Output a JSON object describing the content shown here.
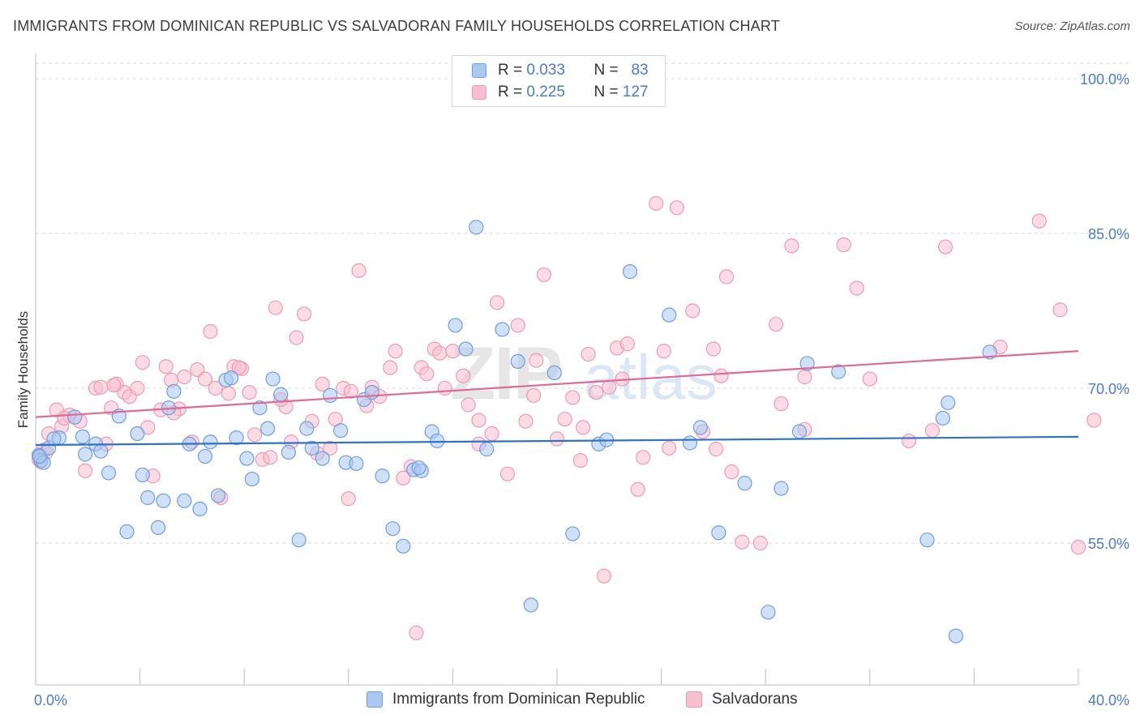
{
  "title": "IMMIGRANTS FROM DOMINICAN REPUBLIC VS SALVADORAN FAMILY HOUSEHOLDS CORRELATION CHART",
  "source": "Source: ZipAtlas.com",
  "watermark": "ZIPatlas",
  "colors": {
    "blue_fill": "#aac8f0",
    "blue_stroke": "#6f9ee0",
    "blue_line": "#2f73c9",
    "pink_fill": "#f7bfd0",
    "pink_stroke": "#ee9ab5",
    "pink_line": "#e06a96",
    "tick_text": "#4a7cc9",
    "grid": "#d9d9d9"
  },
  "stats": {
    "row1": {
      "r_label": "R =",
      "r_value": "0.033",
      "n_label": "N =",
      "n_value": "83"
    },
    "row2": {
      "r_label": "R =",
      "r_value": "0.225",
      "n_label": "N =",
      "n_value": "127"
    }
  },
  "chart_data": {
    "type": "scatter",
    "title": "IMMIGRANTS FROM DOMINICAN REPUBLIC VS SALVADORAN FAMILY HOUSEHOLDS CORRELATION CHART",
    "xlabel": "",
    "ylabel": "Family Households",
    "xlim": [
      0,
      40
    ],
    "ylim": [
      40,
      102
    ],
    "x_tick_labels": [
      "0.0%",
      "40.0%"
    ],
    "y_ticks": [
      55,
      70,
      85,
      100
    ],
    "y_tick_labels": [
      "55.0%",
      "70.0%",
      "85.0%",
      "100.0%"
    ],
    "grid": true,
    "legend_position": "bottom-center",
    "series": [
      {
        "name": "Immigrants from Dominican Republic",
        "color": "blue",
        "trend": {
          "x": [
            0,
            40
          ],
          "y": [
            64.5,
            65.3
          ]
        },
        "points": [
          [
            0.1,
            63.5
          ],
          [
            0.2,
            63
          ],
          [
            0.3,
            62.8
          ],
          [
            0.5,
            64.2
          ],
          [
            0.9,
            65.2
          ],
          [
            1.5,
            67.2
          ],
          [
            1.9,
            63.6
          ],
          [
            1.8,
            65.3
          ],
          [
            2.3,
            64.6
          ],
          [
            2.5,
            63.9
          ],
          [
            2.8,
            61.8
          ],
          [
            3.2,
            67.3
          ],
          [
            3.5,
            56.1
          ],
          [
            3.9,
            65.6
          ],
          [
            4.1,
            61.6
          ],
          [
            4.3,
            59.4
          ],
          [
            4.7,
            56.5
          ],
          [
            4.9,
            59.1
          ],
          [
            5.1,
            68.1
          ],
          [
            5.3,
            69.7
          ],
          [
            5.7,
            59.1
          ],
          [
            5.9,
            64.6
          ],
          [
            6.3,
            58.3
          ],
          [
            6.5,
            63.4
          ],
          [
            6.7,
            64.8
          ],
          [
            7.0,
            59.6
          ],
          [
            7.3,
            70.8
          ],
          [
            7.5,
            71.0
          ],
          [
            7.7,
            65.2
          ],
          [
            8.1,
            63.2
          ],
          [
            8.3,
            61.2
          ],
          [
            8.6,
            68.1
          ],
          [
            8.9,
            66.1
          ],
          [
            9.1,
            70.9
          ],
          [
            9.4,
            69.4
          ],
          [
            9.7,
            63.8
          ],
          [
            10.1,
            55.3
          ],
          [
            10.4,
            66.1
          ],
          [
            10.6,
            64.2
          ],
          [
            11.0,
            63.2
          ],
          [
            11.3,
            69.3
          ],
          [
            11.7,
            65.9
          ],
          [
            11.9,
            62.8
          ],
          [
            12.3,
            62.7
          ],
          [
            12.6,
            68.9
          ],
          [
            12.9,
            69.6
          ],
          [
            13.3,
            61.5
          ],
          [
            13.7,
            56.4
          ],
          [
            14.1,
            54.7
          ],
          [
            14.5,
            62.1
          ],
          [
            14.8,
            62.0
          ],
          [
            14.7,
            62.3
          ],
          [
            15.2,
            65.8
          ],
          [
            15.4,
            64.9
          ],
          [
            16.1,
            76.1
          ],
          [
            16.5,
            73.8
          ],
          [
            16.9,
            85.6
          ],
          [
            17.3,
            64.1
          ],
          [
            17.9,
            75.7
          ],
          [
            18.5,
            72.6
          ],
          [
            19.0,
            49.0
          ],
          [
            19.9,
            71.5
          ],
          [
            20.6,
            55.9
          ],
          [
            21.6,
            64.6
          ],
          [
            21.9,
            65.0
          ],
          [
            22.8,
            81.3
          ],
          [
            24.3,
            77.1
          ],
          [
            25.1,
            64.7
          ],
          [
            25.5,
            66.2
          ],
          [
            26.2,
            56.0
          ],
          [
            27.2,
            60.8
          ],
          [
            28.1,
            48.3
          ],
          [
            28.6,
            60.3
          ],
          [
            29.3,
            65.8
          ],
          [
            29.6,
            72.4
          ],
          [
            30.8,
            71.6
          ],
          [
            34.2,
            55.3
          ],
          [
            34.8,
            67.1
          ],
          [
            35.0,
            68.6
          ],
          [
            35.3,
            46.0
          ],
          [
            36.6,
            73.5
          ],
          [
            0.15,
            63.4
          ],
          [
            0.7,
            65.1
          ]
        ]
      },
      {
        "name": "Salvadorans",
        "color": "pink",
        "trend": {
          "x": [
            0,
            40
          ],
          "y": [
            67.2,
            73.6
          ]
        },
        "points": [
          [
            0.1,
            63.1
          ],
          [
            0.3,
            64.0
          ],
          [
            0.5,
            65.6
          ],
          [
            0.8,
            67.9
          ],
          [
            1.0,
            66.3
          ],
          [
            1.3,
            67.4
          ],
          [
            1.7,
            66.8
          ],
          [
            1.9,
            62.0
          ],
          [
            2.3,
            70.0
          ],
          [
            2.5,
            70.1
          ],
          [
            2.7,
            64.6
          ],
          [
            2.9,
            68.1
          ],
          [
            3.1,
            70.4
          ],
          [
            3.4,
            69.6
          ],
          [
            3.6,
            69.2
          ],
          [
            3.9,
            70.0
          ],
          [
            4.1,
            72.5
          ],
          [
            4.3,
            66.2
          ],
          [
            4.5,
            61.5
          ],
          [
            4.8,
            67.9
          ],
          [
            5.0,
            72.1
          ],
          [
            5.2,
            70.8
          ],
          [
            5.5,
            68.0
          ],
          [
            5.7,
            71.1
          ],
          [
            6.0,
            64.8
          ],
          [
            6.2,
            71.8
          ],
          [
            6.5,
            70.9
          ],
          [
            6.7,
            75.5
          ],
          [
            6.9,
            70.0
          ],
          [
            7.1,
            59.4
          ],
          [
            7.4,
            69.5
          ],
          [
            7.6,
            72.1
          ],
          [
            7.9,
            71.9
          ],
          [
            8.2,
            69.6
          ],
          [
            8.4,
            65.5
          ],
          [
            8.7,
            63.1
          ],
          [
            9.0,
            63.3
          ],
          [
            9.2,
            77.8
          ],
          [
            9.6,
            68.2
          ],
          [
            9.8,
            64.8
          ],
          [
            10.0,
            74.9
          ],
          [
            10.3,
            77.2
          ],
          [
            10.6,
            66.8
          ],
          [
            10.8,
            63.7
          ],
          [
            11.0,
            70.4
          ],
          [
            11.3,
            64.2
          ],
          [
            11.5,
            67.0
          ],
          [
            11.8,
            70.0
          ],
          [
            12.0,
            59.3
          ],
          [
            12.4,
            81.4
          ],
          [
            12.7,
            68.3
          ],
          [
            12.9,
            70.1
          ],
          [
            13.2,
            69.2
          ],
          [
            13.6,
            72.0
          ],
          [
            13.8,
            73.6
          ],
          [
            14.1,
            61.3
          ],
          [
            14.4,
            62.4
          ],
          [
            14.6,
            46.3
          ],
          [
            14.8,
            72.0
          ],
          [
            15.0,
            71.4
          ],
          [
            15.3,
            73.8
          ],
          [
            15.5,
            73.4
          ],
          [
            15.7,
            70.0
          ],
          [
            16.0,
            73.6
          ],
          [
            16.4,
            71.2
          ],
          [
            16.6,
            68.4
          ],
          [
            17.0,
            64.6
          ],
          [
            17.5,
            65.6
          ],
          [
            17.7,
            78.3
          ],
          [
            18.1,
            61.7
          ],
          [
            18.5,
            76.1
          ],
          [
            18.8,
            66.8
          ],
          [
            19.2,
            72.7
          ],
          [
            19.5,
            81.0
          ],
          [
            20.0,
            65.1
          ],
          [
            20.3,
            67.0
          ],
          [
            20.6,
            69.1
          ],
          [
            20.9,
            63.0
          ],
          [
            21.2,
            73.3
          ],
          [
            21.5,
            69.6
          ],
          [
            21.8,
            51.8
          ],
          [
            22.0,
            70.1
          ],
          [
            22.3,
            73.9
          ],
          [
            22.5,
            70.9
          ],
          [
            22.7,
            74.3
          ],
          [
            23.1,
            60.2
          ],
          [
            23.3,
            63.3
          ],
          [
            23.8,
            87.9
          ],
          [
            24.1,
            73.6
          ],
          [
            24.3,
            64.2
          ],
          [
            24.6,
            87.5
          ],
          [
            25.2,
            77.5
          ],
          [
            25.6,
            65.8
          ],
          [
            26.0,
            73.8
          ],
          [
            26.3,
            71.2
          ],
          [
            26.5,
            80.8
          ],
          [
            26.7,
            61.9
          ],
          [
            27.1,
            55.1
          ],
          [
            27.8,
            55.0
          ],
          [
            28.4,
            76.2
          ],
          [
            28.6,
            68.5
          ],
          [
            29.0,
            83.8
          ],
          [
            29.5,
            71.1
          ],
          [
            31.0,
            83.9
          ],
          [
            31.5,
            79.7
          ],
          [
            32.0,
            70.9
          ],
          [
            33.5,
            64.9
          ],
          [
            34.4,
            65.9
          ],
          [
            34.9,
            83.7
          ],
          [
            37.0,
            74.0
          ],
          [
            38.5,
            86.2
          ],
          [
            39.3,
            77.6
          ],
          [
            40.0,
            54.6
          ],
          [
            40.6,
            66.9
          ],
          [
            0.2,
            62.9
          ],
          [
            0.4,
            63.8
          ],
          [
            1.1,
            67.1
          ],
          [
            3.0,
            70.3
          ],
          [
            5.3,
            67.6
          ],
          [
            7.8,
            72.0
          ],
          [
            9.4,
            68.9
          ],
          [
            12.1,
            69.7
          ],
          [
            17.0,
            66.9
          ],
          [
            19.1,
            69.3
          ],
          [
            21.0,
            66.2
          ],
          [
            26.1,
            64.1
          ],
          [
            29.5,
            66.0
          ]
        ]
      }
    ]
  },
  "legend": {
    "series1": "Immigrants from Dominican Republic",
    "series2": "Salvadorans"
  }
}
